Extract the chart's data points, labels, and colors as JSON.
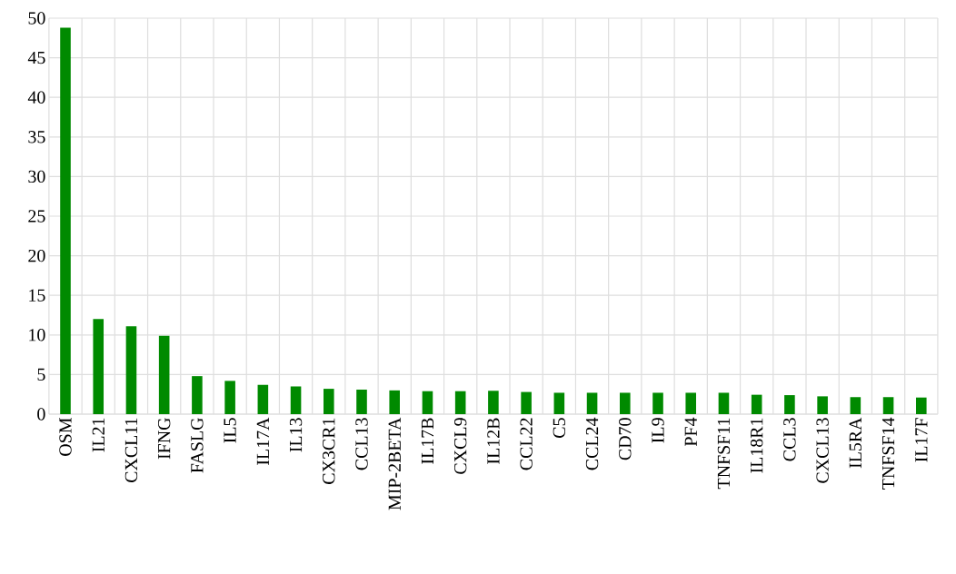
{
  "chart_data": {
    "type": "bar",
    "categories": [
      "OSM",
      "IL21",
      "CXCL11",
      "IFNG",
      "FASLG",
      "IL5",
      "IL17A",
      "IL13",
      "CX3CR1",
      "CCL13",
      "MIP-2BETA",
      "IL17B",
      "CXCL9",
      "IL12B",
      "CCL22",
      "C5",
      "CCL24",
      "CD70",
      "IL9",
      "PF4",
      "TNFSF11",
      "IL18R1",
      "CCL3",
      "CXCL13",
      "IL5RA",
      "TNFSF14",
      "IL17F"
    ],
    "values": [
      48.8,
      12.0,
      11.1,
      9.9,
      4.8,
      4.2,
      3.7,
      3.5,
      3.2,
      3.1,
      3.0,
      2.9,
      2.9,
      2.95,
      2.8,
      2.7,
      2.7,
      2.7,
      2.7,
      2.7,
      2.7,
      2.45,
      2.4,
      2.25,
      2.15,
      2.15,
      2.1
    ],
    "color": "#008a00",
    "ylim": [
      0,
      50
    ],
    "yticks": [
      0,
      5,
      10,
      15,
      20,
      25,
      30,
      35,
      40,
      45,
      50
    ],
    "grid": true
  }
}
